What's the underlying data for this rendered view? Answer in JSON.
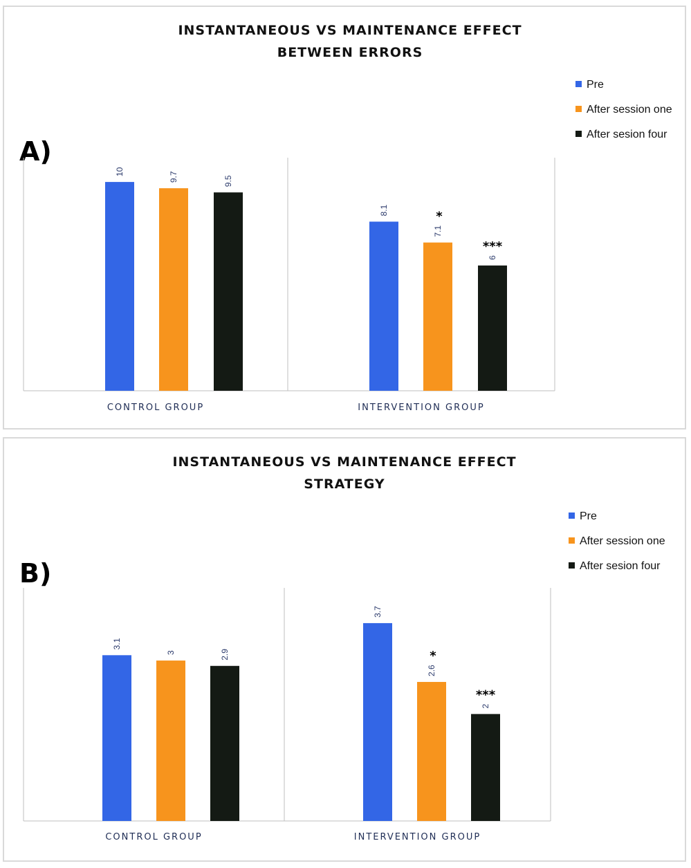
{
  "chart_data": [
    {
      "type": "bar",
      "panel_label": "A)",
      "title": [
        "INSTANTANEOUS VS MAINTENANCE EFFECT",
        "BETWEEN ERRORS"
      ],
      "categories": [
        "CONTROL GROUP",
        "INTERVENTION GROUP"
      ],
      "series": [
        {
          "name": "Pre",
          "color": "#3366e6",
          "values": [
            10,
            8.1
          ],
          "labels": [
            "10",
            "8.1"
          ],
          "sig": [
            "",
            ""
          ]
        },
        {
          "name": "After session one",
          "color": "#f7941d",
          "values": [
            9.7,
            7.1
          ],
          "labels": [
            "9.7",
            "7.1"
          ],
          "sig": [
            "",
            "*"
          ]
        },
        {
          "name": "After sesion four",
          "color": "#141a14",
          "values": [
            9.5,
            6
          ],
          "labels": [
            "9.5",
            "6"
          ],
          "sig": [
            "",
            "***"
          ]
        }
      ],
      "ylim": [
        0,
        10.5
      ],
      "legend_position": "right"
    },
    {
      "type": "bar",
      "panel_label": "B)",
      "title": [
        "INSTANTANEOUS VS MAINTENANCE EFFECT",
        "STRATEGY"
      ],
      "categories": [
        "CONTROL GROUP",
        "INTERVENTION GROUP"
      ],
      "series": [
        {
          "name": "Pre",
          "color": "#3366e6",
          "values": [
            3.1,
            3.7
          ],
          "labels": [
            "3.1",
            "3.7"
          ],
          "sig": [
            "",
            ""
          ]
        },
        {
          "name": "After session one",
          "color": "#f7941d",
          "values": [
            3,
            2.6
          ],
          "labels": [
            "3",
            "2.6"
          ],
          "sig": [
            "",
            "*"
          ]
        },
        {
          "name": "After sesion four",
          "color": "#141a14",
          "values": [
            2.9,
            2
          ],
          "labels": [
            "2.9",
            "2"
          ],
          "sig": [
            "",
            "***"
          ]
        }
      ],
      "ylim": [
        0,
        4.1
      ],
      "legend_position": "right"
    }
  ]
}
